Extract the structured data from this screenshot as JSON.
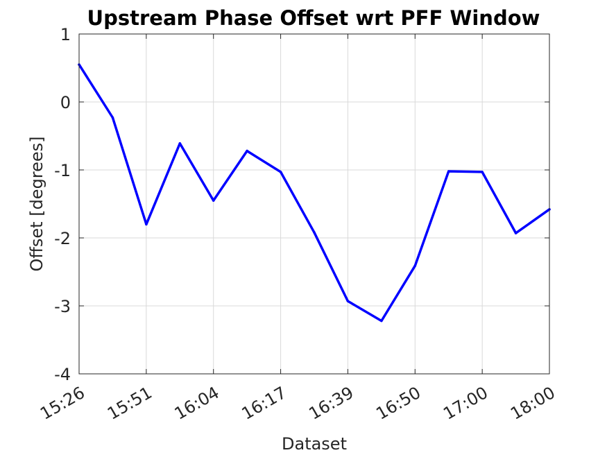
{
  "chart_data": {
    "type": "line",
    "title": "Upstream Phase Offset wrt PFF Window",
    "xlabel": "Dataset",
    "ylabel": "Offset [degrees]",
    "ylim": [
      -4,
      1
    ],
    "yticks": [
      1,
      0,
      -1,
      -2,
      -3,
      -4
    ],
    "yticklabels": [
      "1",
      "0",
      "-1",
      "-2",
      "-3",
      "-4"
    ],
    "xlim": [
      1,
      15
    ],
    "xticks": [
      1,
      3,
      5,
      7,
      9,
      11,
      13,
      15
    ],
    "xticklabels": [
      "15:26",
      "15:51",
      "16:04",
      "16:17",
      "16:39",
      "16:50",
      "17:00",
      "18:00"
    ],
    "grid": true,
    "series": [
      {
        "color": "#0000ff",
        "x": [
          1,
          2,
          3,
          4,
          5,
          6,
          7,
          8,
          9,
          10,
          11,
          12,
          13,
          14,
          15
        ],
        "y": [
          0.55,
          -0.23,
          -1.8,
          -0.61,
          -1.45,
          -0.72,
          -1.03,
          -1.92,
          -2.93,
          -3.22,
          -2.41,
          -1.02,
          -1.03,
          -1.93,
          -1.58
        ]
      }
    ]
  }
}
